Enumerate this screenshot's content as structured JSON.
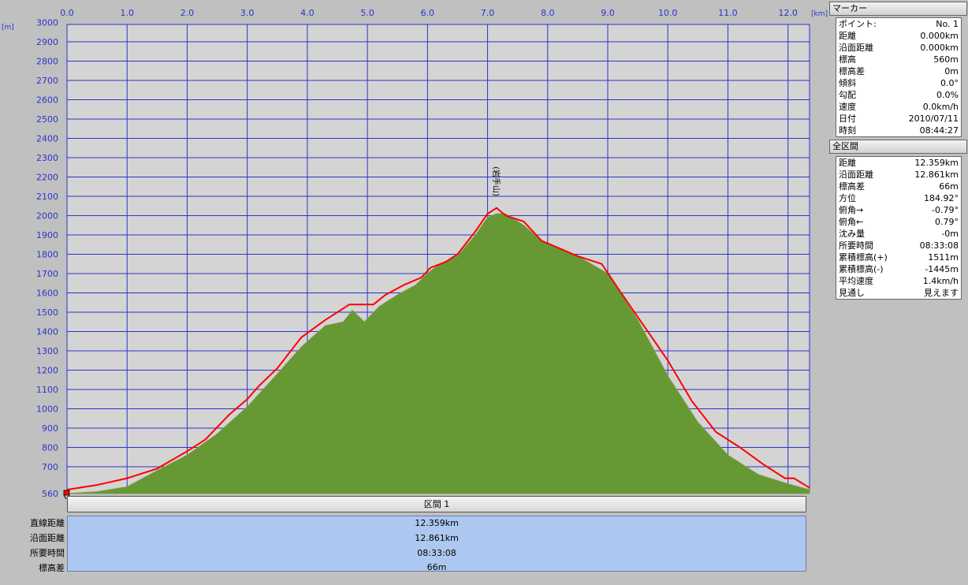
{
  "chart_data": {
    "type": "area",
    "x_unit": "[km]",
    "y_unit": "[m]",
    "x_ticks": [
      "0.0",
      "1.0",
      "2.0",
      "3.0",
      "4.0",
      "5.0",
      "6.0",
      "7.0",
      "8.0",
      "9.0",
      "10.0",
      "11.0",
      "12.0"
    ],
    "y_ticks": [
      "3000",
      "2900",
      "2800",
      "2700",
      "2600",
      "2500",
      "2400",
      "2300",
      "2200",
      "2100",
      "2000",
      "1900",
      "1800",
      "1700",
      "1600",
      "1500",
      "1400",
      "1300",
      "1200",
      "1100",
      "1000",
      "900",
      "800",
      "700",
      "560"
    ],
    "xlim": [
      0,
      12.359
    ],
    "ylim": [
      560,
      3000
    ],
    "grid": true,
    "colors": {
      "terrain": "#669933",
      "track": "#ff0000",
      "grid": "#2b35c8",
      "background": "#d4d4d4"
    },
    "summit_label": "(岩手山)",
    "summit_x": 7.15,
    "terrain": {
      "x": [
        0,
        0.5,
        1.0,
        1.5,
        2.0,
        2.5,
        3.0,
        3.5,
        3.9,
        4.3,
        4.6,
        4.75,
        4.95,
        5.2,
        5.5,
        5.8,
        6.0,
        6.2,
        6.5,
        6.8,
        7.0,
        7.15,
        7.3,
        7.6,
        7.9,
        8.2,
        8.5,
        9.0,
        9.5,
        10.0,
        10.5,
        11.0,
        11.5,
        12.0,
        12.359
      ],
      "y": [
        560,
        570,
        595,
        680,
        760,
        870,
        1010,
        1180,
        1320,
        1430,
        1450,
        1510,
        1450,
        1530,
        1590,
        1640,
        1700,
        1750,
        1790,
        1900,
        1990,
        2010,
        2010,
        1950,
        1870,
        1830,
        1790,
        1700,
        1460,
        1170,
        930,
        760,
        660,
        610,
        580
      ]
    },
    "track": {
      "x": [
        0,
        0.5,
        1.0,
        1.5,
        2.0,
        2.3,
        2.7,
        3.0,
        3.2,
        3.5,
        3.9,
        4.3,
        4.55,
        4.7,
        5.1,
        5.3,
        5.6,
        5.9,
        6.05,
        6.3,
        6.5,
        6.8,
        7.0,
        7.15,
        7.3,
        7.6,
        7.9,
        8.2,
        8.5,
        8.9,
        9.2,
        9.6,
        10.0,
        10.4,
        10.8,
        11.2,
        11.6,
        11.95,
        12.1,
        12.359
      ],
      "y": [
        580,
        605,
        640,
        690,
        780,
        840,
        970,
        1050,
        1120,
        1210,
        1370,
        1460,
        1510,
        1540,
        1540,
        1590,
        1640,
        1680,
        1730,
        1760,
        1800,
        1920,
        2010,
        2040,
        2000,
        1970,
        1870,
        1830,
        1790,
        1750,
        1610,
        1430,
        1250,
        1040,
        880,
        800,
        710,
        640,
        640,
        590
      ]
    }
  },
  "section": {
    "header": "区間 1",
    "labels": [
      "直線距離",
      "沿面距離",
      "所要時間",
      "標高差"
    ],
    "values": [
      "12.359km",
      "12.861km",
      "08:33:08",
      "66m"
    ]
  },
  "marker_panel": {
    "title": "マーカー",
    "rows": [
      {
        "label": "ポイント:",
        "value": "No. 1"
      },
      {
        "label": "距離",
        "value": "0.000km"
      },
      {
        "label": "沿面距離",
        "value": "0.000km"
      },
      {
        "label": "標高",
        "value": "560m"
      },
      {
        "label": "標高差",
        "value": "0m"
      },
      {
        "label": "傾斜",
        "value": "0.0°"
      },
      {
        "label": "勾配",
        "value": "0.0%"
      },
      {
        "label": "速度",
        "value": "0.0km/h"
      },
      {
        "label": "日付",
        "value": "2010/07/11"
      },
      {
        "label": "時刻",
        "value": "08:44:27"
      }
    ]
  },
  "total_panel": {
    "title": "全区間",
    "rows": [
      {
        "label": "距離",
        "value": "12.359km"
      },
      {
        "label": "沿面距離",
        "value": "12.861km"
      },
      {
        "label": "標高差",
        "value": "66m"
      },
      {
        "label": "方位",
        "value": "184.92°"
      },
      {
        "label": "俯角→",
        "value": "-0.79°"
      },
      {
        "label": "俯角←",
        "value": "0.79°"
      },
      {
        "label": "沈み量",
        "value": "-0m"
      },
      {
        "label": "所要時間",
        "value": "08:33:08"
      },
      {
        "label": "累積標高(+)",
        "value": "1511m"
      },
      {
        "label": "累積標高(-)",
        "value": "-1445m"
      },
      {
        "label": "平均速度",
        "value": "1.4km/h"
      },
      {
        "label": "見通し",
        "value": "見えます"
      }
    ]
  }
}
